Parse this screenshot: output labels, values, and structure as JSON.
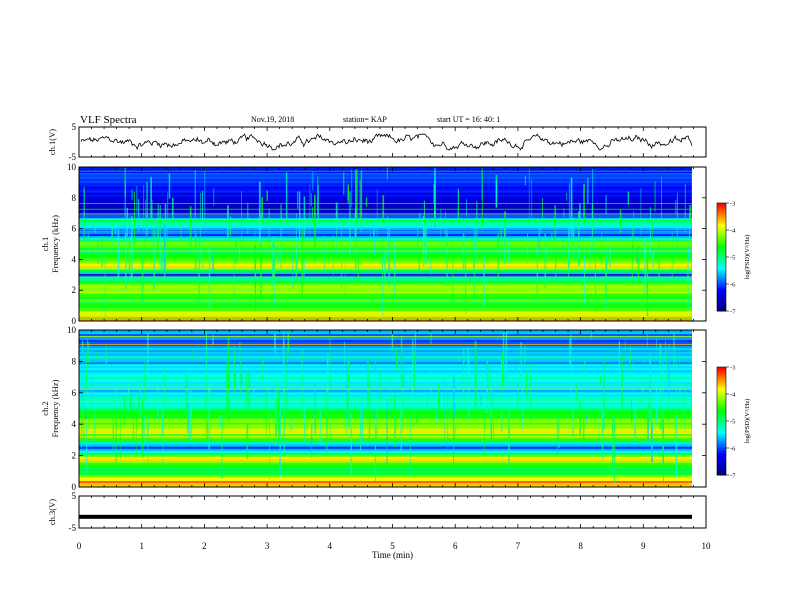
{
  "header": {
    "title": "VLF Spectra",
    "date": "Nov.19, 2018",
    "station": "station= KAP",
    "start": "start  UT =   16: 40: 1"
  },
  "colorbar": {
    "label": "log(PSD)(V²/Hz)",
    "ticks": [
      "-3",
      "-4",
      "-5",
      "-6",
      "-7"
    ],
    "colors": [
      "#ff0000",
      "#ffff00",
      "#00ff00",
      "#00ffff",
      "#0000ff",
      "#00007a"
    ]
  },
  "chart_data": [
    {
      "type": "line",
      "ylabel": "ch.1(V)",
      "ylim": [
        -5,
        5
      ],
      "y_ticks": [
        "5",
        "-5"
      ],
      "x_range_min": [
        0,
        10
      ],
      "note_series": "Noisy waveform fluctuating roughly between -2 and +2 V over the full 10 minutes"
    },
    {
      "type": "heatmap",
      "ylabel": "ch.1\nFrequency (kHz)",
      "ylim": [
        0,
        10
      ],
      "y_ticks": [
        "0",
        "2",
        "4",
        "6",
        "8",
        "10"
      ],
      "x_range_min": [
        0,
        10
      ],
      "band_levels_log_psd": [
        {
          "freq_khz": 0.3,
          "level": -3.5
        },
        {
          "freq_khz": 0.8,
          "level": -4.5
        },
        {
          "freq_khz": 1.6,
          "level": -4.5
        },
        {
          "freq_khz": 2.2,
          "level": -4.0
        },
        {
          "freq_khz": 2.6,
          "level": -5.0
        },
        {
          "freq_khz": 3.0,
          "level": -6.2
        },
        {
          "freq_khz": 3.5,
          "level": -3.5
        },
        {
          "freq_khz": 4.0,
          "level": -4.5
        },
        {
          "freq_khz": 4.5,
          "level": -5.0
        },
        {
          "freq_khz": 5.0,
          "level": -4.0
        },
        {
          "freq_khz": 5.5,
          "level": -6.0
        },
        {
          "freq_khz": 6.5,
          "level": -5.0
        },
        {
          "freq_khz": 7.0,
          "level": -6.5
        },
        {
          "freq_khz": 8.5,
          "level": -6.3
        },
        {
          "freq_khz": 9.5,
          "level": -6.0
        }
      ]
    },
    {
      "type": "heatmap",
      "ylabel": "ch.2\nFrequency (kHz)",
      "ylim": [
        0,
        10
      ],
      "y_ticks": [
        "0",
        "2",
        "4",
        "6",
        "8",
        "10"
      ],
      "x_range_min": [
        0,
        10
      ],
      "band_levels_log_psd": [
        {
          "freq_khz": 0.4,
          "level": -3.5
        },
        {
          "freq_khz": 1.0,
          "level": -5.0
        },
        {
          "freq_khz": 1.8,
          "level": -3.8
        },
        {
          "freq_khz": 2.5,
          "level": -6.2
        },
        {
          "freq_khz": 3.3,
          "level": -3.8
        },
        {
          "freq_khz": 4.2,
          "level": -4.3
        },
        {
          "freq_khz": 5.0,
          "level": -5.0
        },
        {
          "freq_khz": 6.0,
          "level": -5.5
        },
        {
          "freq_khz": 7.5,
          "level": -5.5
        },
        {
          "freq_khz": 9.0,
          "level": -5.8
        }
      ]
    },
    {
      "type": "line",
      "ylabel": "ch.3(V)",
      "ylim": [
        -5,
        5
      ],
      "y_ticks": [
        "5",
        "-5"
      ],
      "x_range_min": [
        0,
        10
      ],
      "constant_value": -1.5
    }
  ],
  "xaxis": {
    "label": "Time (min)",
    "ticks": [
      "0",
      "1",
      "2",
      "3",
      "4",
      "5",
      "6",
      "7",
      "8",
      "9",
      "10"
    ]
  }
}
